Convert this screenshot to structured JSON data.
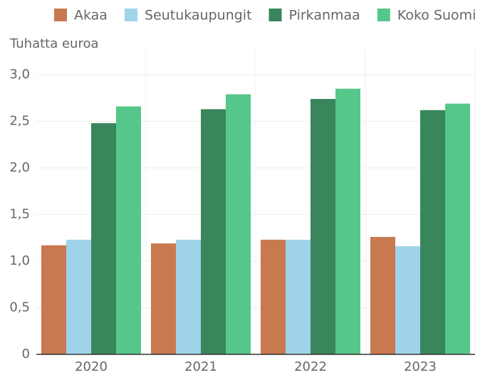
{
  "chart_data": {
    "type": "bar",
    "y_axis_label": "Tuhatta euroa",
    "categories": [
      "2020",
      "2021",
      "2022",
      "2023"
    ],
    "series": [
      {
        "name": "Akaa",
        "color": "#c8794f",
        "values": [
          1.17,
          1.19,
          1.23,
          1.26
        ]
      },
      {
        "name": "Seutukaupungit",
        "color": "#a0d3ea",
        "values": [
          1.23,
          1.23,
          1.23,
          1.16
        ]
      },
      {
        "name": "Pirkanmaa",
        "color": "#39855c",
        "values": [
          2.48,
          2.63,
          2.74,
          2.62
        ]
      },
      {
        "name": "Koko Suomi",
        "color": "#56c78a",
        "values": [
          2.66,
          2.79,
          2.85,
          2.69
        ]
      }
    ],
    "ylim": [
      0,
      3.0
    ],
    "yticks": [
      0,
      {
        "value": 0.5,
        "label": "0,5"
      },
      {
        "value": 1.0,
        "label": "1,0"
      },
      {
        "value": 1.5,
        "label": "1,5"
      },
      {
        "value": 2.0,
        "label": "2,0"
      },
      {
        "value": 2.5,
        "label": "2,5"
      },
      {
        "value": 3.0,
        "label": "3,0"
      }
    ],
    "grid": true
  }
}
